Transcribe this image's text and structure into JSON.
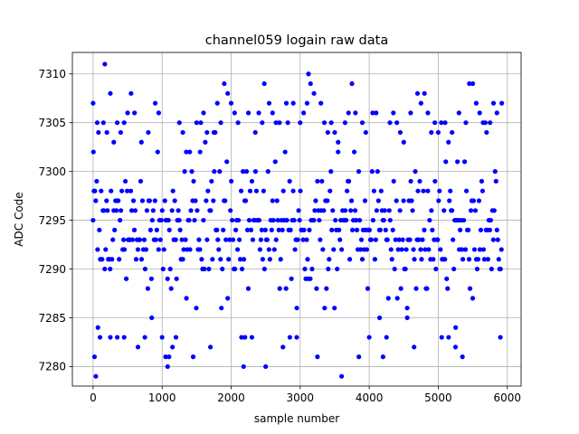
{
  "chart_data": {
    "type": "scatter",
    "title": "channel059 logain raw data",
    "xlabel": "sample number",
    "ylabel": "ADC Code",
    "xlim": [
      -300,
      6200
    ],
    "ylim": [
      7278,
      7312.2
    ],
    "x_ticks": [
      0,
      1000,
      2000,
      3000,
      4000,
      5000,
      6000
    ],
    "y_ticks": [
      7280,
      7285,
      7290,
      7295,
      7300,
      7305,
      7310
    ],
    "x_tick_labels": [
      "0",
      "1000",
      "2000",
      "3000",
      "4000",
      "5000",
      "6000"
    ],
    "y_tick_labels": [
      "7280",
      "7285",
      "7290",
      "7295",
      "7300",
      "7305",
      "7310"
    ],
    "grid": true,
    "marker_color": "#0000ff",
    "x_range": [
      0,
      5920
    ],
    "y_range": [
      7279,
      7311
    ],
    "points": [
      [
        0,
        7307
      ],
      [
        5,
        7302
      ],
      [
        20,
        7281
      ],
      [
        40,
        7279
      ],
      [
        60,
        7305
      ],
      [
        70,
        7284
      ],
      [
        100,
        7283
      ],
      [
        150,
        7305
      ],
      [
        170,
        7311
      ],
      [
        200,
        7304
      ],
      [
        250,
        7308
      ],
      [
        250,
        7283
      ],
      [
        300,
        7303
      ],
      [
        350,
        7305
      ],
      [
        350,
        7283
      ],
      [
        400,
        7304
      ],
      [
        450,
        7305
      ],
      [
        450,
        7283
      ],
      [
        500,
        7306
      ],
      [
        550,
        7308
      ],
      [
        600,
        7306
      ],
      [
        650,
        7282
      ],
      [
        700,
        7303
      ],
      [
        750,
        7283
      ],
      [
        800,
        7304
      ],
      [
        850,
        7285
      ],
      [
        900,
        7307
      ],
      [
        950,
        7306
      ],
      [
        1000,
        7283
      ],
      [
        1050,
        7281
      ],
      [
        1080,
        7280
      ],
      [
        1100,
        7281
      ],
      [
        1150,
        7282
      ],
      [
        1200,
        7283
      ],
      [
        1250,
        7305
      ],
      [
        1300,
        7304
      ],
      [
        1350,
        7302
      ],
      [
        1400,
        7302
      ],
      [
        1450,
        7281
      ],
      [
        1500,
        7305
      ],
      [
        1550,
        7302
      ],
      [
        1600,
        7306
      ],
      [
        1650,
        7304
      ],
      [
        1700,
        7282
      ],
      [
        1750,
        7304
      ],
      [
        1800,
        7307
      ],
      [
        1850,
        7305
      ],
      [
        1900,
        7309
      ],
      [
        1950,
        7308
      ],
      [
        2000,
        7307
      ],
      [
        2050,
        7306
      ],
      [
        2100,
        7305
      ],
      [
        2150,
        7283
      ],
      [
        2180,
        7280
      ],
      [
        2200,
        7283
      ],
      [
        2250,
        7306
      ],
      [
        2300,
        7283
      ],
      [
        2350,
        7304
      ],
      [
        2400,
        7306
      ],
      [
        2450,
        7305
      ],
      [
        2480,
        7309
      ],
      [
        2500,
        7280
      ],
      [
        2550,
        7307
      ],
      [
        2600,
        7306
      ],
      [
        2650,
        7305
      ],
      [
        2700,
        7305
      ],
      [
        2750,
        7282
      ],
      [
        2800,
        7307
      ],
      [
        2850,
        7283
      ],
      [
        2900,
        7307
      ],
      [
        2950,
        7283
      ],
      [
        3000,
        7305
      ],
      [
        3050,
        7306
      ],
      [
        3100,
        7307
      ],
      [
        3120,
        7310
      ],
      [
        3150,
        7309
      ],
      [
        3200,
        7308
      ],
      [
        3250,
        7281
      ],
      [
        3300,
        7307
      ],
      [
        3350,
        7305
      ],
      [
        3400,
        7304
      ],
      [
        3450,
        7305
      ],
      [
        3500,
        7304
      ],
      [
        3550,
        7303
      ],
      [
        3600,
        7279
      ],
      [
        3650,
        7305
      ],
      [
        3700,
        7306
      ],
      [
        3750,
        7309
      ],
      [
        3800,
        7306
      ],
      [
        3850,
        7281
      ],
      [
        3900,
        7305
      ],
      [
        3950,
        7304
      ],
      [
        4000,
        7283
      ],
      [
        4050,
        7306
      ],
      [
        4100,
        7306
      ],
      [
        4150,
        7285
      ],
      [
        4200,
        7281
      ],
      [
        4250,
        7283
      ],
      [
        4300,
        7305
      ],
      [
        4350,
        7306
      ],
      [
        4400,
        7305
      ],
      [
        4450,
        7304
      ],
      [
        4500,
        7303
      ],
      [
        4550,
        7285
      ],
      [
        4600,
        7306
      ],
      [
        4650,
        7282
      ],
      [
        4700,
        7308
      ],
      [
        4750,
        7307
      ],
      [
        4800,
        7308
      ],
      [
        4850,
        7306
      ],
      [
        4900,
        7304
      ],
      [
        4950,
        7305
      ],
      [
        5000,
        7304
      ],
      [
        5050,
        7283
      ],
      [
        5100,
        7305
      ],
      [
        5150,
        7283
      ],
      [
        5200,
        7304
      ],
      [
        5250,
        7282
      ],
      [
        5300,
        7306
      ],
      [
        5350,
        7281
      ],
      [
        5400,
        7305
      ],
      [
        5450,
        7309
      ],
      [
        5500,
        7309
      ],
      [
        5550,
        7307
      ],
      [
        5600,
        7306
      ],
      [
        5650,
        7305
      ],
      [
        5700,
        7304
      ],
      [
        5750,
        7305
      ],
      [
        5800,
        7307
      ],
      [
        5850,
        7306
      ],
      [
        5900,
        7283
      ],
      [
        5920,
        7307
      ]
    ]
  }
}
